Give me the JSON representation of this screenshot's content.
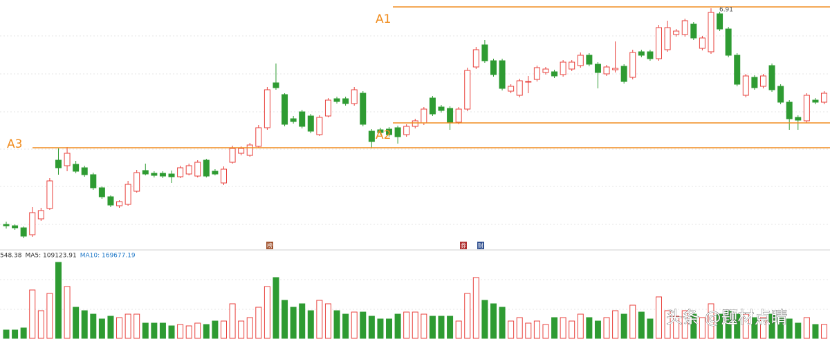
{
  "chart_data": {
    "type": "candlestick",
    "open": [
      3.78,
      3.76,
      3.73,
      3.63,
      3.86,
      4.01,
      4.71,
      4.63,
      4.65,
      4.6,
      4.5,
      4.31,
      4.18,
      4.05,
      4.07,
      4.26,
      4.56,
      4.52,
      4.52,
      4.51,
      4.47,
      4.51,
      4.48,
      4.71,
      4.55,
      4.38,
      4.68,
      4.81,
      4.78,
      4.91,
      5.18,
      5.83,
      5.66,
      5.31,
      5.41,
      5.35,
      5.08,
      5.35,
      5.6,
      5.6,
      5.53,
      5.68,
      5.13,
      5.15,
      5.16,
      5.18,
      5.08,
      5.2,
      5.25,
      5.61,
      5.48,
      5.46,
      5.26,
      5.45,
      6.06,
      6.38,
      6.15,
      6.15,
      5.71,
      5.65,
      5.84,
      5.88,
      5.98,
      5.99,
      5.95,
      6.03,
      6.08,
      6.23,
      6.1,
      5.96,
      6.02,
      6.07,
      5.91,
      6.28,
      6.28,
      6.18,
      6.31,
      6.53,
      6.53,
      6.68,
      6.33,
      6.28,
      6.83,
      6.61,
      6.23,
      5.65,
      5.91,
      5.78,
      6.08,
      5.78,
      5.55,
      5.33,
      5.28,
      5.58,
      5.55
    ],
    "high": [
      3.82,
      3.78,
      3.75,
      4.03,
      4.02,
      4.45,
      4.88,
      4.9,
      4.7,
      4.63,
      4.53,
      4.33,
      4.2,
      4.13,
      4.41,
      4.57,
      4.66,
      4.55,
      4.55,
      4.56,
      4.63,
      4.66,
      4.71,
      4.73,
      4.58,
      4.62,
      4.92,
      4.91,
      4.96,
      5.22,
      5.77,
      6.11,
      5.68,
      5.35,
      5.44,
      5.38,
      5.36,
      5.61,
      5.63,
      5.63,
      5.77,
      5.71,
      5.16,
      5.18,
      5.19,
      5.21,
      5.23,
      5.31,
      5.48,
      5.64,
      5.51,
      5.49,
      5.48,
      6.05,
      6.35,
      6.45,
      6.18,
      6.18,
      5.81,
      5.89,
      5.93,
      6.08,
      6.06,
      6.02,
      6.16,
      6.16,
      6.27,
      6.26,
      6.13,
      6.09,
      6.43,
      6.1,
      6.31,
      6.31,
      6.31,
      6.67,
      6.73,
      6.61,
      6.76,
      6.71,
      6.51,
      6.91,
      6.86,
      6.64,
      6.26,
      5.96,
      5.94,
      5.96,
      6.11,
      5.81,
      5.58,
      5.36,
      5.68,
      5.61,
      5.71
    ],
    "low": [
      3.72,
      3.7,
      3.58,
      3.6,
      3.83,
      3.99,
      4.5,
      4.55,
      4.52,
      4.47,
      4.28,
      4.15,
      4.03,
      4.02,
      4.05,
      4.24,
      4.49,
      4.46,
      4.45,
      4.38,
      4.45,
      4.49,
      4.46,
      4.46,
      4.49,
      4.35,
      4.66,
      4.78,
      4.76,
      4.89,
      5.15,
      5.73,
      5.2,
      5.24,
      5.17,
      5.1,
      5.06,
      5.33,
      5.53,
      5.5,
      5.5,
      5.2,
      4.88,
      5.08,
      5.05,
      4.95,
      5.05,
      5.17,
      5.22,
      5.35,
      5.4,
      5.15,
      5.23,
      5.42,
      6.03,
      6.12,
      5.92,
      5.72,
      5.68,
      5.62,
      5.68,
      5.85,
      5.95,
      5.9,
      5.92,
      6.0,
      6.05,
      6.07,
      5.75,
      5.93,
      5.98,
      5.82,
      5.88,
      6.2,
      6.15,
      6.15,
      6.28,
      6.5,
      6.5,
      6.45,
      6.3,
      6.25,
      6.58,
      6.2,
      5.78,
      5.62,
      5.73,
      5.75,
      5.7,
      5.52,
      5.15,
      5.15,
      5.25,
      5.52,
      5.52
    ],
    "close": [
      3.76,
      3.73,
      3.61,
      3.95,
      3.98,
      4.41,
      4.6,
      4.81,
      4.55,
      4.5,
      4.31,
      4.18,
      4.06,
      4.11,
      4.36,
      4.53,
      4.51,
      4.49,
      4.48,
      4.47,
      4.6,
      4.63,
      4.68,
      4.48,
      4.51,
      4.58,
      4.88,
      4.88,
      4.93,
      5.18,
      5.73,
      5.76,
      5.23,
      5.27,
      5.2,
      5.13,
      5.33,
      5.58,
      5.56,
      5.53,
      5.73,
      5.23,
      4.98,
      5.11,
      5.08,
      5.05,
      5.2,
      5.28,
      5.45,
      5.38,
      5.43,
      5.25,
      5.45,
      6.01,
      6.31,
      6.15,
      5.95,
      5.75,
      5.78,
      5.86,
      5.85,
      6.05,
      6.03,
      5.93,
      6.13,
      6.13,
      6.23,
      6.1,
      5.98,
      6.06,
      6.04,
      5.85,
      6.27,
      6.23,
      6.18,
      6.63,
      6.63,
      6.58,
      6.73,
      6.48,
      6.48,
      6.85,
      6.61,
      6.23,
      5.81,
      5.93,
      5.76,
      5.93,
      5.73,
      5.55,
      5.31,
      5.29,
      5.65,
      5.55,
      5.68
    ],
    "volume": [
      48000,
      48000,
      60000,
      280000,
      160000,
      260000,
      440000,
      300000,
      180000,
      160000,
      140000,
      112000,
      128000,
      120000,
      140000,
      140000,
      88000,
      88000,
      88000,
      72000,
      80000,
      72000,
      88000,
      80000,
      100000,
      100000,
      200000,
      100000,
      120000,
      180000,
      300000,
      352000,
      220000,
      180000,
      200000,
      160000,
      220000,
      200000,
      160000,
      140000,
      152000,
      152000,
      128000,
      112000,
      112000,
      140000,
      152000,
      152000,
      140000,
      128000,
      128000,
      128000,
      100000,
      260000,
      352000,
      220000,
      200000,
      180000,
      100000,
      120000,
      88000,
      100000,
      80000,
      120000,
      120000,
      100000,
      140000,
      120000,
      100000,
      120000,
      160000,
      140000,
      192000,
      152000,
      112000,
      240000,
      160000,
      128000,
      160000,
      140000,
      120000,
      200000,
      140000,
      160000,
      140000,
      140000,
      120000,
      120000,
      140000,
      120000,
      112000,
      88000,
      120000,
      80000,
      80000
    ],
    "ylim": [
      3.53,
      7.03
    ],
    "volume_ylim": [
      0,
      480000
    ],
    "up_color": "#e8413c",
    "down_color": "#2e9b32",
    "level_color": "#f08c1e",
    "levels": [
      {
        "name": "A1",
        "value": 6.93
      },
      {
        "name": "A2",
        "value": 5.25
      },
      {
        "name": "A3",
        "value": 4.89
      }
    ],
    "volume_legend": [
      {
        "text": "548.38",
        "color": "#333333"
      },
      {
        "text": "MA5: 109123.91",
        "color": "#333333"
      },
      {
        "text": "MA10: 169677.19",
        "color": "#1f78c8"
      }
    ],
    "markers": [
      "榜",
      "券",
      "财"
    ],
    "watermark": "头条 @题材点睛"
  }
}
